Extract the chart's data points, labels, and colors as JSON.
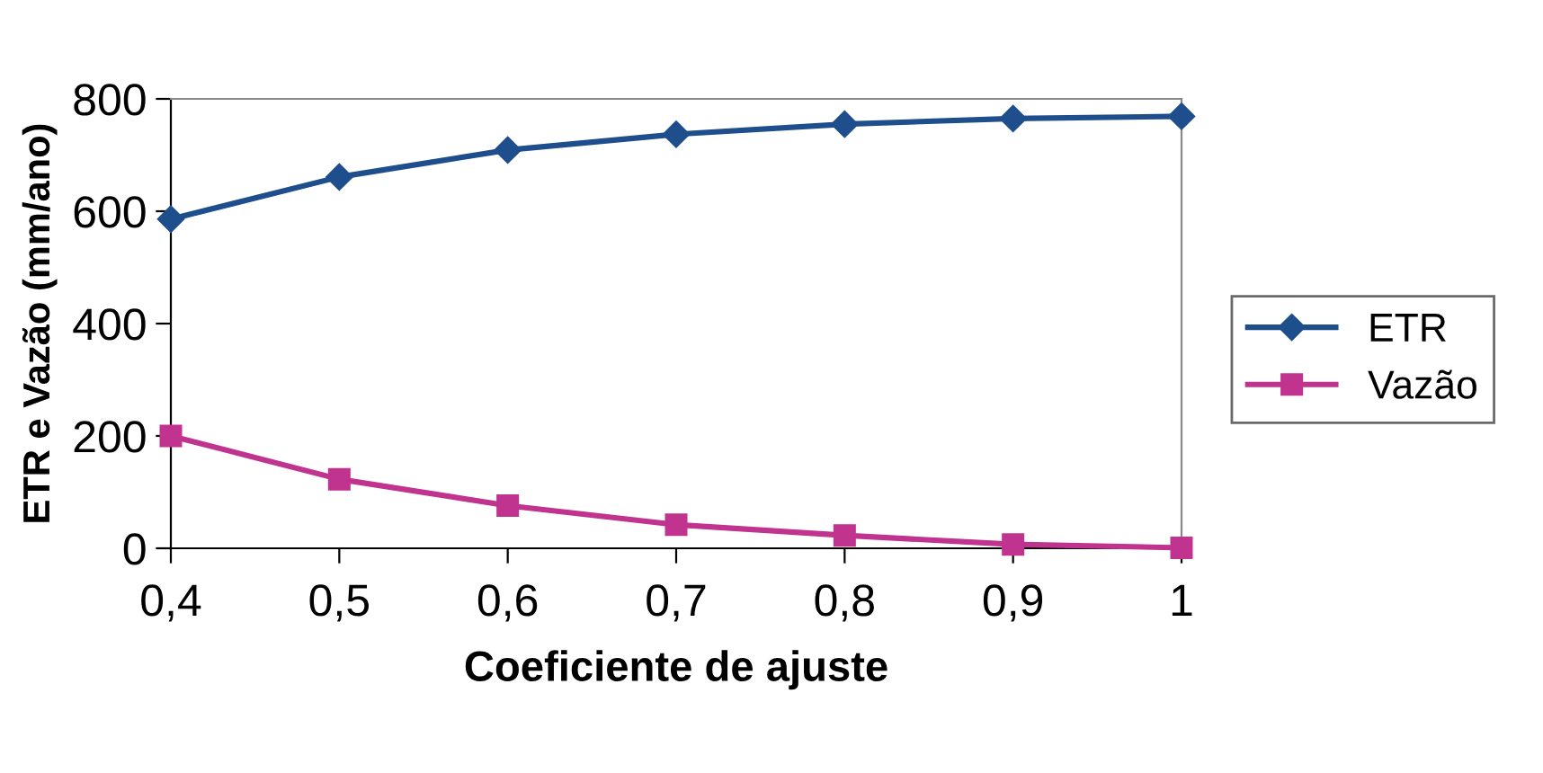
{
  "chart_data": {
    "type": "line",
    "xlabel": "Coeficiente de ajuste",
    "ylabel": "ETR e Vazão (mm/ano)",
    "x": [
      0.4,
      0.5,
      0.6,
      0.7,
      0.8,
      0.9,
      1
    ],
    "series": [
      {
        "name": "ETR",
        "color": "#1f4e8c",
        "marker": "diamond",
        "values": [
          586,
          661,
          709,
          737,
          755,
          765,
          769
        ]
      },
      {
        "name": "Vazão",
        "color": "#c0338f",
        "marker": "square",
        "values": [
          200,
          123,
          76,
          42,
          23,
          7,
          1
        ]
      }
    ],
    "xlim": [
      0.4,
      1
    ],
    "xticks": [
      {
        "value": 0.4,
        "label": "0,4"
      },
      {
        "value": 0.5,
        "label": "0,5"
      },
      {
        "value": 0.6,
        "label": "0,6"
      },
      {
        "value": 0.7,
        "label": "0,7"
      },
      {
        "value": 0.8,
        "label": "0,8"
      },
      {
        "value": 0.9,
        "label": "0,9"
      },
      {
        "value": 1,
        "label": "1"
      }
    ],
    "ylim": [
      0,
      800
    ],
    "yticks": [
      0,
      200,
      400,
      600,
      800
    ],
    "grid": false,
    "legend": "right",
    "line_style": "solid"
  }
}
